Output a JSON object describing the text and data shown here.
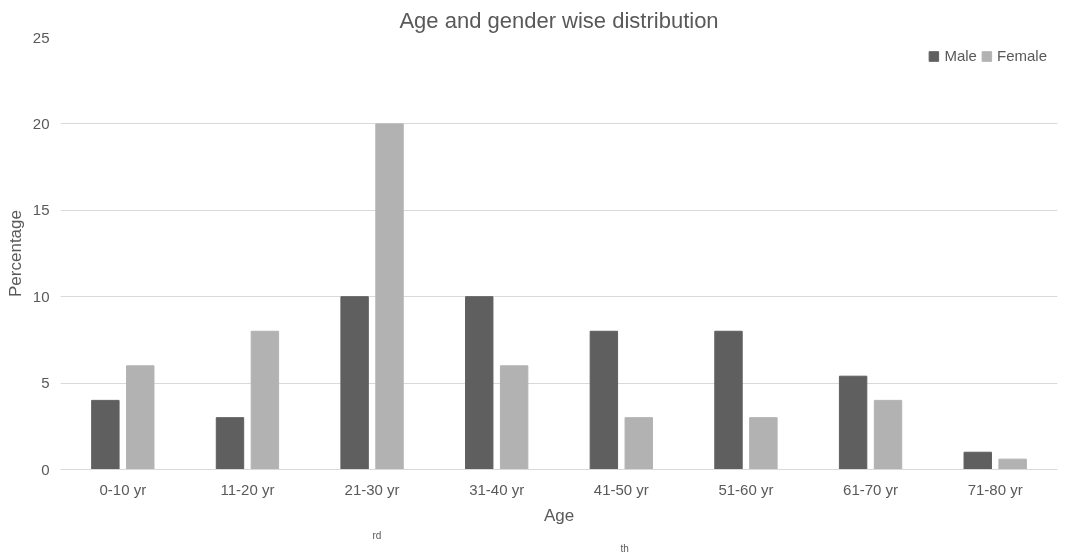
{
  "chart_data": {
    "type": "bar",
    "title": "Age and gender wise distribution",
    "xlabel": "Age",
    "ylabel": "Percentage",
    "categories": [
      "0-10 yr",
      "11-20 yr",
      "21-30 yr",
      "31-40 yr",
      "41-50 yr",
      "51-60 yr",
      "61-70 yr",
      "71-80 yr"
    ],
    "series": [
      {
        "name": "Male",
        "color": "#5f5f5f",
        "values": [
          4,
          3,
          10,
          10,
          8,
          8,
          5.4,
          1
        ]
      },
      {
        "name": "Female",
        "color": "#b2b2b2",
        "values": [
          6,
          8,
          20,
          6,
          3,
          3,
          4,
          0.6
        ]
      }
    ],
    "ylim": [
      0,
      25
    ],
    "yticks": [
      0,
      5,
      10,
      15,
      20,
      25
    ],
    "grid": "y",
    "legend": "top right",
    "annotations": [
      "rd",
      "th"
    ]
  }
}
